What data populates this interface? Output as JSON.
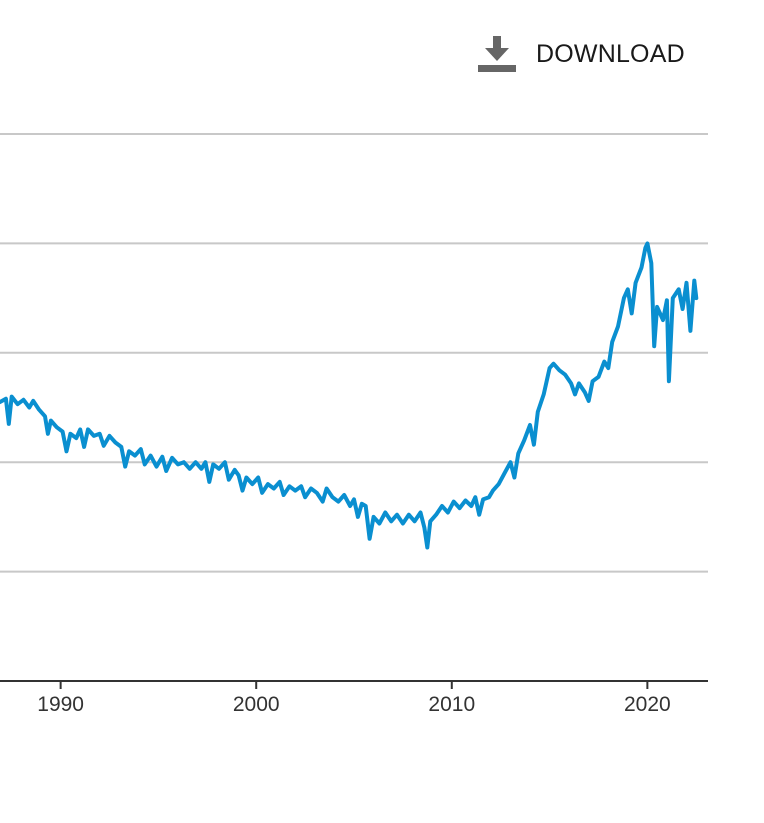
{
  "toolbar": {
    "download_label": "DOWNLOAD",
    "download_icon": "download-icon"
  },
  "colors": {
    "line": "#0a8fd0",
    "grid": "#c8c8c8",
    "axis": "#333333",
    "icon": "#666666"
  },
  "chart_data": {
    "type": "line",
    "title": "",
    "xlabel": "",
    "ylabel": "",
    "xlim": [
      1986.9,
      2023.1
    ],
    "ylim": [
      0,
      5
    ],
    "grid": true,
    "gridlines_y": [
      1,
      2,
      3,
      4,
      5
    ],
    "x_ticks": [
      1990,
      2000,
      2010,
      2020
    ],
    "x_tick_labels": [
      "1990",
      "2000",
      "2010",
      "2020"
    ],
    "series": [
      {
        "name": "",
        "points": [
          [
            1986.9,
            2.55
          ],
          [
            1987.2,
            2.58
          ],
          [
            1987.35,
            2.35
          ],
          [
            1987.5,
            2.6
          ],
          [
            1987.8,
            2.53
          ],
          [
            1988.1,
            2.57
          ],
          [
            1988.4,
            2.5
          ],
          [
            1988.6,
            2.56
          ],
          [
            1988.9,
            2.48
          ],
          [
            1989.2,
            2.42
          ],
          [
            1989.35,
            2.26
          ],
          [
            1989.5,
            2.38
          ],
          [
            1989.8,
            2.32
          ],
          [
            1990.1,
            2.28
          ],
          [
            1990.3,
            2.1
          ],
          [
            1990.5,
            2.26
          ],
          [
            1990.8,
            2.22
          ],
          [
            1991.0,
            2.3
          ],
          [
            1991.2,
            2.14
          ],
          [
            1991.4,
            2.3
          ],
          [
            1991.7,
            2.24
          ],
          [
            1992.0,
            2.26
          ],
          [
            1992.2,
            2.15
          ],
          [
            1992.5,
            2.24
          ],
          [
            1992.8,
            2.18
          ],
          [
            1993.1,
            2.14
          ],
          [
            1993.3,
            1.96
          ],
          [
            1993.5,
            2.1
          ],
          [
            1993.8,
            2.06
          ],
          [
            1994.1,
            2.12
          ],
          [
            1994.3,
            1.98
          ],
          [
            1994.6,
            2.06
          ],
          [
            1994.9,
            1.96
          ],
          [
            1995.2,
            2.05
          ],
          [
            1995.4,
            1.92
          ],
          [
            1995.7,
            2.04
          ],
          [
            1996.0,
            1.98
          ],
          [
            1996.3,
            2.0
          ],
          [
            1996.6,
            1.94
          ],
          [
            1996.9,
            2.0
          ],
          [
            1997.2,
            1.94
          ],
          [
            1997.4,
            2.0
          ],
          [
            1997.6,
            1.82
          ],
          [
            1997.8,
            1.98
          ],
          [
            1998.1,
            1.94
          ],
          [
            1998.4,
            2.0
          ],
          [
            1998.6,
            1.84
          ],
          [
            1998.9,
            1.93
          ],
          [
            1999.1,
            1.88
          ],
          [
            1999.3,
            1.74
          ],
          [
            1999.5,
            1.86
          ],
          [
            1999.8,
            1.8
          ],
          [
            2000.1,
            1.86
          ],
          [
            2000.3,
            1.72
          ],
          [
            2000.6,
            1.8
          ],
          [
            2000.9,
            1.76
          ],
          [
            2001.2,
            1.82
          ],
          [
            2001.4,
            1.7
          ],
          [
            2001.7,
            1.78
          ],
          [
            2002.0,
            1.74
          ],
          [
            2002.3,
            1.78
          ],
          [
            2002.5,
            1.68
          ],
          [
            2002.8,
            1.76
          ],
          [
            2003.1,
            1.72
          ],
          [
            2003.4,
            1.64
          ],
          [
            2003.6,
            1.76
          ],
          [
            2003.9,
            1.68
          ],
          [
            2004.2,
            1.64
          ],
          [
            2004.5,
            1.7
          ],
          [
            2004.8,
            1.6
          ],
          [
            2005.0,
            1.66
          ],
          [
            2005.2,
            1.5
          ],
          [
            2005.4,
            1.62
          ],
          [
            2005.6,
            1.6
          ],
          [
            2005.8,
            1.3
          ],
          [
            2006.0,
            1.5
          ],
          [
            2006.3,
            1.44
          ],
          [
            2006.6,
            1.54
          ],
          [
            2006.9,
            1.46
          ],
          [
            2007.2,
            1.52
          ],
          [
            2007.5,
            1.44
          ],
          [
            2007.8,
            1.52
          ],
          [
            2008.1,
            1.46
          ],
          [
            2008.4,
            1.54
          ],
          [
            2008.6,
            1.4
          ],
          [
            2008.75,
            1.22
          ],
          [
            2008.9,
            1.46
          ],
          [
            2009.2,
            1.52
          ],
          [
            2009.5,
            1.6
          ],
          [
            2009.8,
            1.54
          ],
          [
            2010.1,
            1.64
          ],
          [
            2010.4,
            1.58
          ],
          [
            2010.7,
            1.65
          ],
          [
            2011.0,
            1.6
          ],
          [
            2011.2,
            1.68
          ],
          [
            2011.4,
            1.52
          ],
          [
            2011.6,
            1.66
          ],
          [
            2011.9,
            1.68
          ],
          [
            2012.1,
            1.74
          ],
          [
            2012.4,
            1.8
          ],
          [
            2012.7,
            1.9
          ],
          [
            2013.0,
            2.0
          ],
          [
            2013.2,
            1.86
          ],
          [
            2013.4,
            2.08
          ],
          [
            2013.7,
            2.2
          ],
          [
            2014.0,
            2.34
          ],
          [
            2014.2,
            2.16
          ],
          [
            2014.4,
            2.46
          ],
          [
            2014.7,
            2.62
          ],
          [
            2015.0,
            2.86
          ],
          [
            2015.2,
            2.9
          ],
          [
            2015.5,
            2.84
          ],
          [
            2015.8,
            2.8
          ],
          [
            2016.1,
            2.72
          ],
          [
            2016.3,
            2.62
          ],
          [
            2016.5,
            2.72
          ],
          [
            2016.8,
            2.64
          ],
          [
            2017.0,
            2.56
          ],
          [
            2017.2,
            2.74
          ],
          [
            2017.5,
            2.78
          ],
          [
            2017.8,
            2.92
          ],
          [
            2018.0,
            2.86
          ],
          [
            2018.2,
            3.1
          ],
          [
            2018.5,
            3.24
          ],
          [
            2018.8,
            3.5
          ],
          [
            2019.0,
            3.58
          ],
          [
            2019.2,
            3.36
          ],
          [
            2019.4,
            3.64
          ],
          [
            2019.7,
            3.78
          ],
          [
            2019.9,
            3.96
          ],
          [
            2020.0,
            4.0
          ],
          [
            2020.2,
            3.82
          ],
          [
            2020.35,
            3.06
          ],
          [
            2020.5,
            3.42
          ],
          [
            2020.8,
            3.3
          ],
          [
            2021.0,
            3.48
          ],
          [
            2021.1,
            2.74
          ],
          [
            2021.3,
            3.5
          ],
          [
            2021.6,
            3.58
          ],
          [
            2021.8,
            3.4
          ],
          [
            2022.0,
            3.64
          ],
          [
            2022.2,
            3.2
          ],
          [
            2022.4,
            3.66
          ],
          [
            2022.5,
            3.5
          ]
        ]
      }
    ]
  }
}
